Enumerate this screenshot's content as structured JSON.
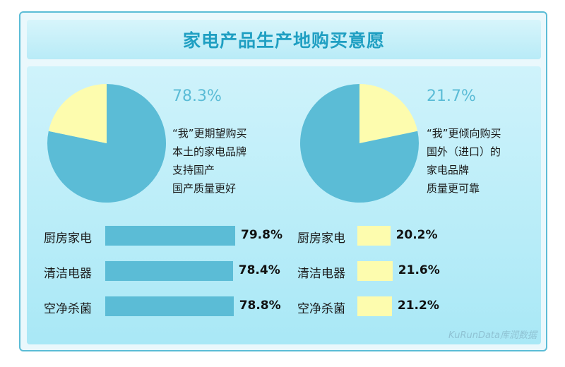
{
  "title": "家电产品生产地购买意愿",
  "source": "KuRunData库润数据",
  "colors": {
    "domestic": "#5bbcd6",
    "foreign": "#fdfcae",
    "accent": "#1f9fc2"
  },
  "chart_data": [
    {
      "type": "pie",
      "title": "",
      "slices": [
        {
          "label": "本土",
          "value": 78.3
        },
        {
          "label": "国外",
          "value": 21.7
        }
      ],
      "highlight_label": "78.3%",
      "description": [
        "“我”更期望购买",
        "本土的家电品牌",
        "支持国产",
        "国产质量更好"
      ]
    },
    {
      "type": "pie",
      "title": "",
      "slices": [
        {
          "label": "国外",
          "value": 21.7
        },
        {
          "label": "本土",
          "value": 78.3
        }
      ],
      "highlight_label": "21.7%",
      "description": [
        "“我”更倾向购买",
        "国外（进口）的",
        "家电品牌",
        "质量更可靠"
      ]
    },
    {
      "type": "bar",
      "orientation": "horizontal",
      "categories": [
        "厨房家电",
        "清洁电器",
        "空净杀菌"
      ],
      "series": [
        {
          "values": [
            79.8,
            78.4,
            78.8
          ],
          "labels": [
            "79.8%",
            "78.4%",
            "78.8%"
          ]
        },
        {
          "values": [
            20.2,
            21.6,
            21.2
          ],
          "labels": [
            "20.2%",
            "21.6%",
            "21.2%"
          ]
        }
      ]
    }
  ]
}
